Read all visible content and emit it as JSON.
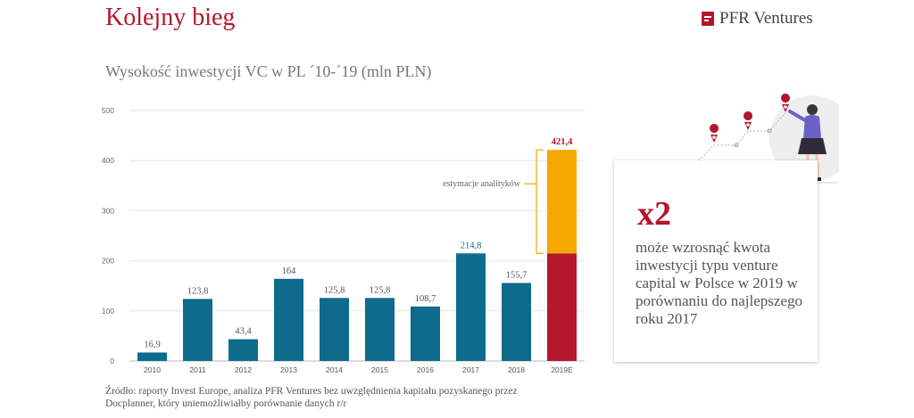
{
  "header": {
    "title": "Kolejny bieg",
    "brand": "PFR Ventures"
  },
  "subtitle": "Wysokość inwestycji VC w PL ´10-´19 (mln PLN)",
  "chart_data": {
    "type": "bar",
    "categories": [
      "2010",
      "2011",
      "2012",
      "2013",
      "2014",
      "2015",
      "2016",
      "2017",
      "2018",
      "2019E"
    ],
    "values": [
      16.9,
      123.8,
      43.4,
      164,
      125.8,
      125.8,
      108.7,
      214.8,
      155.7,
      421.4
    ],
    "value_labels": [
      "16,9",
      "123,8",
      "43,4",
      "164",
      "125,8",
      "125,8",
      "108,7",
      "214,8",
      "155,7",
      "421,4"
    ],
    "stacked_2019E": {
      "base": 214.8,
      "estimate": 206.6
    },
    "ylim": [
      0,
      500
    ],
    "yticks": [
      0,
      100,
      200,
      300,
      400,
      500
    ],
    "annotation": "estymacje analityków",
    "colors": {
      "bar": "#0e6b8c",
      "base_2019": "#b5162b",
      "estimate_2019": "#f5a800",
      "highlight_label": "#0e6b8c",
      "red_label": "#b5162b"
    }
  },
  "source": "Źródło: raporty Invest Europe, analiza PFR Ventures bez uwzględnienia kapitału pozyskanego przez Docplanner, który uniemożliwiałby porównanie danych r/r",
  "card": {
    "headline": "x2",
    "text": "może wzrosnąć  kwota inwestycji typu venture capital w Polsce w 2019 w porównaniu do najlepszego roku 2017"
  },
  "illustration": {
    "icon": "woman-with-location-pins-icon"
  }
}
